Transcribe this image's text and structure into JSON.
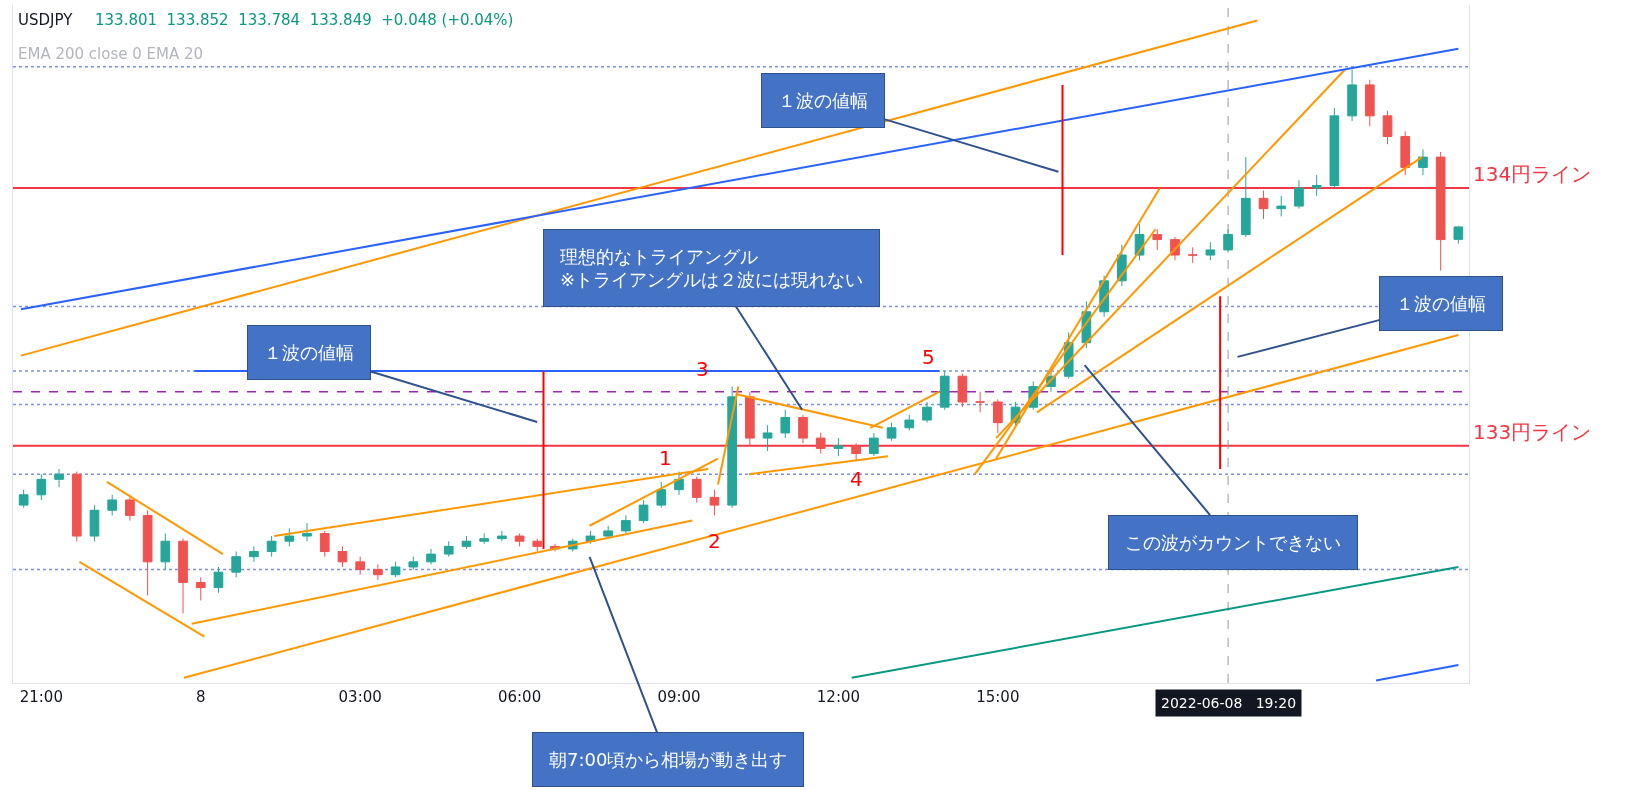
{
  "chart_data": {
    "type": "candlestick",
    "title": "USDJPY",
    "subtitle": "133.801  133.852  133.784  133.849  +0.048 (+0.04%)",
    "x": [
      "2022-06-07T20:40",
      "2022-06-07T21:00",
      "2022-06-07T21:20",
      "2022-06-07T21:40",
      "2022-06-07T22:00",
      "2022-06-07T22:20",
      "2022-06-07T22:40",
      "2022-06-07T23:00",
      "2022-06-07T23:20",
      "2022-06-07T23:40",
      "2022-06-08T00:00",
      "2022-06-08T00:20",
      "2022-06-08T00:40",
      "2022-06-08T01:00",
      "2022-06-08T01:20",
      "2022-06-08T01:40",
      "2022-06-08T02:00",
      "2022-06-08T02:20",
      "2022-06-08T02:40",
      "2022-06-08T03:00",
      "2022-06-08T03:20",
      "2022-06-08T03:40",
      "2022-06-08T04:00",
      "2022-06-08T04:20",
      "2022-06-08T04:40",
      "2022-06-08T05:00",
      "2022-06-08T05:20",
      "2022-06-08T05:40",
      "2022-06-08T06:00",
      "2022-06-08T06:20",
      "2022-06-08T06:40",
      "2022-06-08T07:00",
      "2022-06-08T07:20",
      "2022-06-08T07:40",
      "2022-06-08T08:00",
      "2022-06-08T08:20",
      "2022-06-08T08:40",
      "2022-06-08T09:00",
      "2022-06-08T09:20",
      "2022-06-08T09:40",
      "2022-06-08T10:00",
      "2022-06-08T10:20",
      "2022-06-08T10:40",
      "2022-06-08T11:00",
      "2022-06-08T11:20",
      "2022-06-08T11:40",
      "2022-06-08T12:00",
      "2022-06-08T12:20",
      "2022-06-08T12:40",
      "2022-06-08T13:00",
      "2022-06-08T13:20",
      "2022-06-08T13:40",
      "2022-06-08T14:00",
      "2022-06-08T14:20",
      "2022-06-08T14:40",
      "2022-06-08T15:00",
      "2022-06-08T15:20",
      "2022-06-08T15:40",
      "2022-06-08T16:00",
      "2022-06-08T16:20",
      "2022-06-08T16:40",
      "2022-06-08T17:00",
      "2022-06-08T17:20",
      "2022-06-08T17:40",
      "2022-06-08T18:00",
      "2022-06-08T18:20",
      "2022-06-08T18:40",
      "2022-06-08T19:00",
      "2022-06-08T19:20",
      "2022-06-08T19:40",
      "2022-06-08T20:00",
      "2022-06-08T20:20",
      "2022-06-08T20:40",
      "2022-06-08T21:00",
      "2022-06-08T21:20",
      "2022-06-08T21:40",
      "2022-06-08T22:00",
      "2022-06-08T22:20",
      "2022-06-08T22:40",
      "2022-06-08T23:00",
      "2022-06-08T23:20",
      "2022-06-08T23:40"
    ],
    "ohlc": [
      [
        132.77,
        132.83,
        132.76,
        132.81
      ],
      [
        132.81,
        132.89,
        132.79,
        132.87
      ],
      [
        132.87,
        132.91,
        132.84,
        132.89
      ],
      [
        132.89,
        132.9,
        132.63,
        132.65
      ],
      [
        132.65,
        132.77,
        132.63,
        132.75
      ],
      [
        132.75,
        132.81,
        132.73,
        132.79
      ],
      [
        132.79,
        132.81,
        132.71,
        132.73
      ],
      [
        132.73,
        132.75,
        132.42,
        132.55
      ],
      [
        132.55,
        132.66,
        132.52,
        132.63
      ],
      [
        132.63,
        132.64,
        132.35,
        132.47
      ],
      [
        132.47,
        132.49,
        132.4,
        132.45
      ],
      [
        132.45,
        132.53,
        132.43,
        132.51
      ],
      [
        132.51,
        132.59,
        132.49,
        132.57
      ],
      [
        132.57,
        132.61,
        132.55,
        132.59
      ],
      [
        132.59,
        132.65,
        132.57,
        132.63
      ],
      [
        132.63,
        132.68,
        132.61,
        132.65
      ],
      [
        132.65,
        132.7,
        132.63,
        132.66
      ],
      [
        132.66,
        132.67,
        132.57,
        132.59
      ],
      [
        132.59,
        132.61,
        132.53,
        132.55
      ],
      [
        132.55,
        132.57,
        132.5,
        132.52
      ],
      [
        132.52,
        132.54,
        132.48,
        132.5
      ],
      [
        132.5,
        132.55,
        132.49,
        132.53
      ],
      [
        132.53,
        132.57,
        132.52,
        132.55
      ],
      [
        132.55,
        132.6,
        132.54,
        132.58
      ],
      [
        132.58,
        132.63,
        132.57,
        132.61
      ],
      [
        132.61,
        132.65,
        132.6,
        132.63
      ],
      [
        132.63,
        132.66,
        132.62,
        132.64
      ],
      [
        132.64,
        132.67,
        132.63,
        132.65
      ],
      [
        132.65,
        132.66,
        132.61,
        132.63
      ],
      [
        132.63,
        132.64,
        132.59,
        132.61
      ],
      [
        132.61,
        132.62,
        132.59,
        132.6
      ],
      [
        132.6,
        132.64,
        132.59,
        132.63
      ],
      [
        132.63,
        132.67,
        132.62,
        132.65
      ],
      [
        132.65,
        132.69,
        132.64,
        132.67
      ],
      [
        132.67,
        132.73,
        132.66,
        132.71
      ],
      [
        132.71,
        132.79,
        132.7,
        132.77
      ],
      [
        132.77,
        132.86,
        132.76,
        132.83
      ],
      [
        132.83,
        132.9,
        132.81,
        132.87
      ],
      [
        132.87,
        132.88,
        132.78,
        132.8
      ],
      [
        132.8,
        132.83,
        132.73,
        132.77
      ],
      [
        132.77,
        133.23,
        132.76,
        133.19
      ],
      [
        133.19,
        133.21,
        133.0,
        133.03
      ],
      [
        133.03,
        133.08,
        132.98,
        133.05
      ],
      [
        133.05,
        133.14,
        133.03,
        133.11
      ],
      [
        133.11,
        133.12,
        133.01,
        133.03
      ],
      [
        133.03,
        133.05,
        132.97,
        132.99
      ],
      [
        132.99,
        133.03,
        132.96,
        133.0
      ],
      [
        133.0,
        133.01,
        132.94,
        132.97
      ],
      [
        132.97,
        133.05,
        132.96,
        133.03
      ],
      [
        133.03,
        133.09,
        133.02,
        133.07
      ],
      [
        133.07,
        133.12,
        133.06,
        133.1
      ],
      [
        133.1,
        133.17,
        133.09,
        133.15
      ],
      [
        133.15,
        133.29,
        133.14,
        133.27
      ],
      [
        133.27,
        133.28,
        133.15,
        133.17
      ],
      [
        133.17,
        133.21,
        133.13,
        133.17
      ],
      [
        133.17,
        133.18,
        133.05,
        133.09
      ],
      [
        133.09,
        133.17,
        133.08,
        133.15
      ],
      [
        133.15,
        133.25,
        133.14,
        133.23
      ],
      [
        133.23,
        133.29,
        133.21,
        133.27
      ],
      [
        133.27,
        133.44,
        133.26,
        133.4
      ],
      [
        133.4,
        133.56,
        133.38,
        133.52
      ],
      [
        133.52,
        133.66,
        133.5,
        133.64
      ],
      [
        133.64,
        133.78,
        133.62,
        133.74
      ],
      [
        133.74,
        133.86,
        133.72,
        133.82
      ],
      [
        133.82,
        133.84,
        133.76,
        133.8
      ],
      [
        133.8,
        133.81,
        133.72,
        133.74
      ],
      [
        133.74,
        133.77,
        133.71,
        133.74
      ],
      [
        133.74,
        133.79,
        133.72,
        133.76
      ],
      [
        133.76,
        133.84,
        133.75,
        133.82
      ],
      [
        133.82,
        134.12,
        133.81,
        133.96
      ],
      [
        133.96,
        133.99,
        133.88,
        133.92
      ],
      [
        133.92,
        133.97,
        133.89,
        133.93
      ],
      [
        133.93,
        134.03,
        133.92,
        134.0
      ],
      [
        134.0,
        134.05,
        133.97,
        134.01
      ],
      [
        134.01,
        134.31,
        134.0,
        134.28
      ],
      [
        134.28,
        134.46,
        134.26,
        134.4
      ],
      [
        134.4,
        134.42,
        134.24,
        134.28
      ],
      [
        134.28,
        134.3,
        134.17,
        134.2
      ],
      [
        134.2,
        134.22,
        134.05,
        134.08
      ],
      [
        134.08,
        134.15,
        134.05,
        134.12
      ],
      [
        134.12,
        134.14,
        133.68,
        133.8
      ],
      [
        133.801,
        133.852,
        133.784,
        133.849
      ]
    ],
    "series": [
      {
        "type": "line",
        "color": "#ff9800",
        "x": [
          "2022-06-07T20:37",
          "2022-06-08T19:53"
        ],
        "values": [
          133.35,
          134.65
        ]
      },
      {
        "type": "line",
        "color": "#ff9800",
        "x": [
          "2022-06-07T22:14",
          "2022-06-08T00:25"
        ],
        "values": [
          132.86,
          132.58
        ]
      },
      {
        "type": "line",
        "color": "#ff9800",
        "x": [
          "2022-06-07T21:43",
          "2022-06-08T00:04"
        ],
        "values": [
          132.55,
          132.26
        ]
      },
      {
        "type": "line",
        "color": "#ff9800",
        "x": [
          "2022-06-07T23:50",
          "2022-06-08T09:15"
        ],
        "values": [
          132.31,
          132.71
        ]
      },
      {
        "type": "line",
        "color": "#ff9800",
        "x": [
          "2022-06-08T01:23",
          "2022-06-08T09:33"
        ],
        "values": [
          132.65,
          132.91
        ]
      },
      {
        "type": "line",
        "color": "#ff9800",
        "x": [
          "2022-06-07T23:41",
          "2022-06-08T23:40"
        ],
        "values": [
          132.1,
          133.43
        ]
      },
      {
        "type": "line",
        "color": "#ff9800",
        "x": [
          "2022-06-08T07:19",
          "2022-06-08T09:44"
        ],
        "values": [
          132.69,
          132.95
        ]
      },
      {
        "type": "line",
        "color": "#ff9800",
        "x": [
          "2022-06-08T09:44",
          "2022-06-08T10:07"
        ],
        "values": [
          132.85,
          133.23
        ]
      },
      {
        "type": "line",
        "color": "#ff9800",
        "x": [
          "2022-06-08T10:05",
          "2022-06-08T12:50"
        ],
        "values": [
          133.2,
          133.07
        ]
      },
      {
        "type": "line",
        "color": "#ff9800",
        "x": [
          "2022-06-08T10:19",
          "2022-06-08T12:56"
        ],
        "values": [
          132.89,
          132.96
        ]
      },
      {
        "type": "line",
        "color": "#ff9800",
        "x": [
          "2022-06-08T12:36",
          "2022-06-08T13:54"
        ],
        "values": [
          133.07,
          133.21
        ]
      },
      {
        "type": "line",
        "color": "#ff9800",
        "x": [
          "2022-06-08T14:34",
          "2022-06-08T17:58"
        ],
        "values": [
          132.89,
          133.84
        ]
      },
      {
        "type": "line",
        "color": "#ff9800",
        "x": [
          "2022-06-08T14:58",
          "2022-06-08T18:03"
        ],
        "values": [
          132.95,
          134.0
        ]
      },
      {
        "type": "line",
        "color": "#ff9800",
        "x": [
          "2022-06-08T14:58",
          "2022-06-08T21:32"
        ],
        "values": [
          133.03,
          134.46
        ]
      },
      {
        "type": "line",
        "color": "#ff9800",
        "x": [
          "2022-06-08T15:44",
          "2022-06-08T22:59"
        ],
        "values": [
          133.13,
          134.12
        ]
      },
      {
        "type": "line",
        "color": "#2962ff",
        "x": [
          "2022-06-07T20:37",
          "2022-06-08T23:40"
        ],
        "values": [
          133.53,
          134.54
        ]
      },
      {
        "type": "line",
        "color": "#2962ff",
        "x": [
          "2022-06-07T23:53",
          "2022-06-08T13:54"
        ],
        "values": [
          133.29,
          133.29
        ]
      },
      {
        "type": "line",
        "color": "#2962ff",
        "x": [
          "2022-06-08T22:07",
          "2022-06-08T23:40"
        ],
        "values": [
          132.09,
          132.15
        ]
      },
      {
        "type": "line",
        "color": "#089981",
        "x": [
          "2022-06-08T12:15",
          "2022-06-08T23:40"
        ],
        "values": [
          132.1,
          132.53
        ]
      },
      {
        "type": "line",
        "color": "#ff0000",
        "x": [
          "2022-06-08T06:27",
          "2022-06-08T06:27"
        ],
        "values": [
          133.29,
          132.6
        ]
      },
      {
        "type": "line",
        "color": "#ff0000",
        "x": [
          "2022-06-08T16:13",
          "2022-06-08T16:13"
        ],
        "values": [
          134.4,
          133.74
        ]
      },
      {
        "type": "line",
        "color": "#ff0000",
        "x": [
          "2022-06-08T19:11",
          "2022-06-08T19:11"
        ],
        "values": [
          133.58,
          132.91
        ]
      }
    ],
    "ref_lines": [
      {
        "axis": "y",
        "value": 133,
        "label": "133円ライン",
        "color": "#f23645"
      },
      {
        "axis": "y",
        "value": 134,
        "label": "134円ライン",
        "color": "#f23645"
      },
      {
        "axis": "y",
        "value": 133.21,
        "color": "#9c27b0",
        "line_style": "dashed"
      },
      {
        "axis": "y",
        "value": 134.47,
        "color": "#7b8fe8",
        "line_style": "dotted"
      },
      {
        "axis": "y",
        "value": 133.54,
        "color": "#7b8fe8",
        "line_style": "dotted"
      },
      {
        "axis": "y",
        "value": 133.29,
        "color": "#7b8fe8",
        "line_style": "dotted"
      },
      {
        "axis": "y",
        "value": 133.16,
        "color": "#7b8fe8",
        "line_style": "dotted"
      },
      {
        "axis": "y",
        "value": 132.89,
        "color": "#7b8fe8",
        "line_style": "dotted"
      },
      {
        "axis": "y",
        "value": 132.52,
        "color": "#7b8fe8",
        "line_style": "dotted"
      },
      {
        "axis": "x",
        "value": "2022-06-08T19:20",
        "label": "2022-06-08   19:20",
        "color": "#9598a1",
        "line_style": "dashed"
      }
    ],
    "xlim": [
      "2022-06-07T20:28",
      "2022-06-08T23:52"
    ],
    "xticks": [
      {
        "value": "2022-06-07T21:00",
        "label": "21:00"
      },
      {
        "value": "2022-06-08T00:00",
        "label": "8"
      },
      {
        "value": "2022-06-08T03:00",
        "label": "03:00"
      },
      {
        "value": "2022-06-08T06:00",
        "label": "06:00"
      },
      {
        "value": "2022-06-08T09:00",
        "label": "09:00"
      },
      {
        "value": "2022-06-08T12:00",
        "label": "12:00"
      },
      {
        "value": "2022-06-08T15:00",
        "label": "15:00"
      }
    ],
    "ylim": [
      132.08,
      134.71
    ],
    "tick_labels": "x",
    "annotations": [
      "EMA 200 close 0 EMA 20",
      "１波の値幅",
      {
        "text": "理想的なトライアングル\n※トライアングルは２波には現れない",
        "x": "2022-06-08T11:19",
        "y": 133.14
      },
      "１波の値幅",
      "１波の値幅",
      "この波がカウントできない",
      "朝7:00頃から相場が動き出す",
      {
        "text": "1",
        "x": "2022-06-08T09:00",
        "y": 132.9
      },
      {
        "text": "2",
        "x": "2022-06-08T09:40",
        "y": 132.73
      },
      {
        "text": "3",
        "x": "2022-06-08T10:00",
        "y": 133.23
      },
      {
        "text": "4",
        "x": "2022-06-08T12:20",
        "y": 132.94
      },
      {
        "text": "5",
        "x": "2022-06-08T14:00",
        "y": 133.29
      }
    ]
  }
}
